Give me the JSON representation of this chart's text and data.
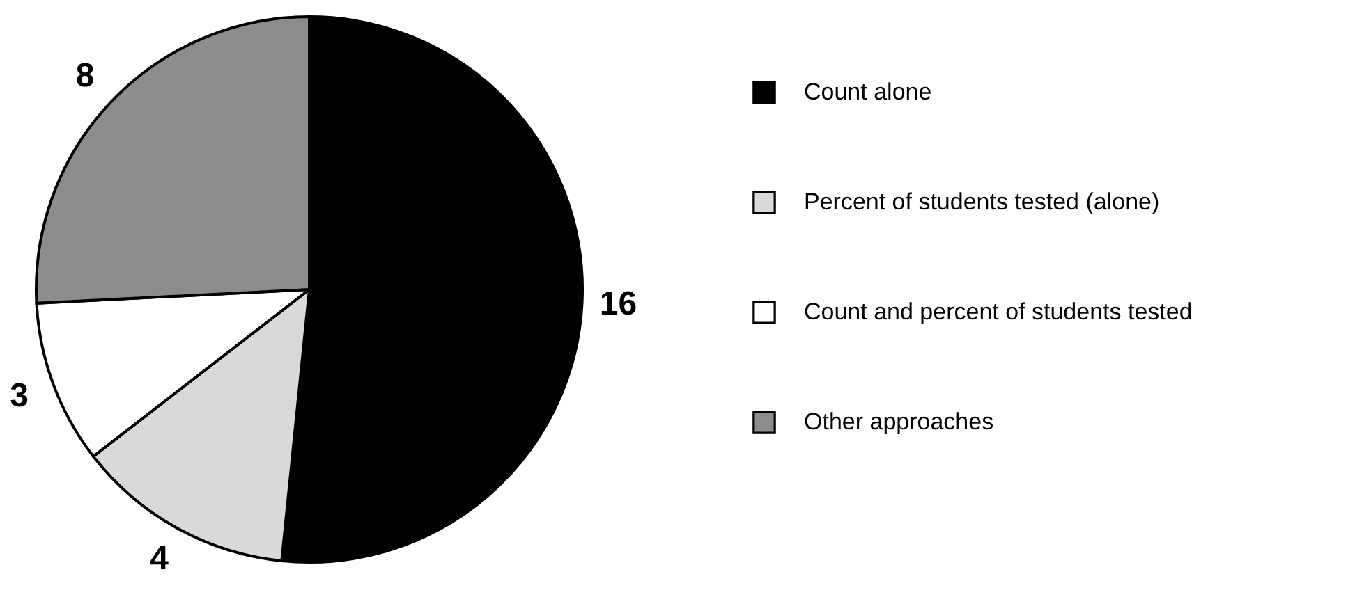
{
  "chart_data": {
    "type": "pie",
    "categories": [
      "Count alone",
      "Percent of students tested (alone)",
      "Count and percent of students tested",
      "Other approaches"
    ],
    "values": [
      16,
      4,
      3,
      8
    ],
    "colors": [
      "#000000",
      "#d9d9d9",
      "#ffffff",
      "#8c8c8c"
    ],
    "data_labels": true,
    "legend": "right"
  }
}
